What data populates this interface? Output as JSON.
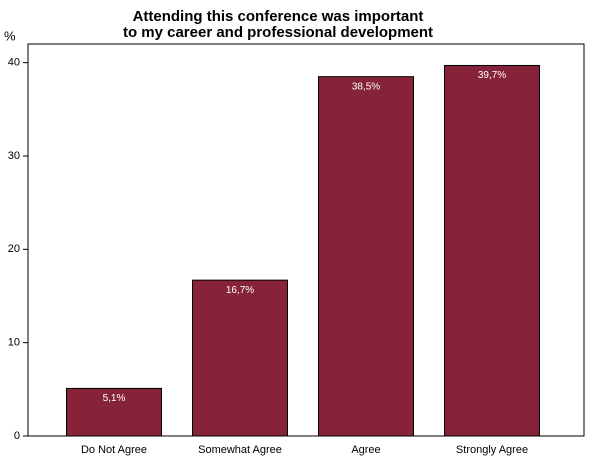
{
  "chart_data": {
    "type": "bar",
    "title": [
      "Attending this conference was important",
      "to my career and professional development"
    ],
    "y_label": "%",
    "categories": [
      "Do Not Agree",
      "Somewhat Agree",
      "Agree",
      "Strongly Agree"
    ],
    "values": [
      5.1,
      16.7,
      38.5,
      39.7
    ],
    "value_labels": [
      "5,1%",
      "16,7%",
      "38,5%",
      "39,7%"
    ],
    "color": "#86223a",
    "ylim": [
      0,
      42
    ],
    "yticks": [
      0,
      10,
      20,
      30,
      40
    ],
    "grid": false
  }
}
